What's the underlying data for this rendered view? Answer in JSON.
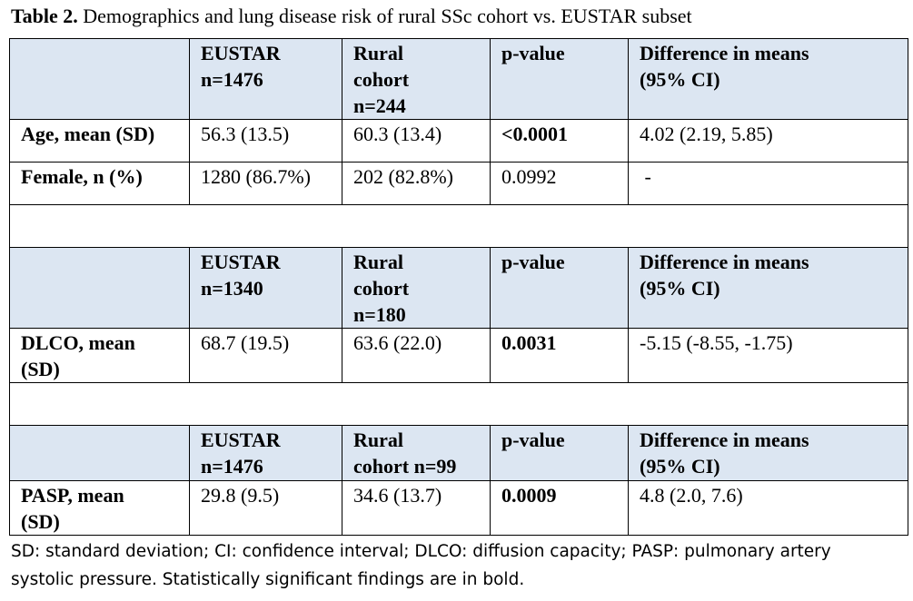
{
  "caption": {
    "label": "Table 2.",
    "text": " Demographics and lung disease risk of rural SSc cohort vs. EUSTAR subset"
  },
  "section1": {
    "header": {
      "col1": "",
      "eustar_line1": "EUSTAR",
      "eustar_line2": "n=1476",
      "rural_line1": "Rural",
      "rural_line2": "cohort",
      "rural_line3": "n=244",
      "pvalue": "p-value",
      "diff_line1": "Difference in means",
      "diff_line2": "(95% CI)"
    },
    "rows": [
      {
        "label": "Age, mean (SD)",
        "eustar": "56.3 (13.5)",
        "rural": "60.3 (13.4)",
        "pvalue": "<0.0001",
        "diff": "4.02 (2.19, 5.85)"
      },
      {
        "label": "Female, n (%)",
        "eustar": "1280 (86.7%)",
        "rural": "202 (82.8%)",
        "pvalue": "0.0992",
        "diff": " -"
      }
    ]
  },
  "section2": {
    "header": {
      "eustar_line1": "EUSTAR",
      "eustar_line2": "n=1340",
      "rural_line1": "Rural",
      "rural_line2": "cohort",
      "rural_line3": "n=180",
      "pvalue": "p-value",
      "diff_line1": "Difference in means",
      "diff_line2": "(95% CI)"
    },
    "row": {
      "label_line1": "DLCO, mean",
      "label_line2": "(SD)",
      "eustar": "68.7 (19.5)",
      "rural": "63.6 (22.0)",
      "pvalue": "0.0031",
      "diff": "-5.15 (-8.55, -1.75)"
    }
  },
  "section3": {
    "header": {
      "eustar_line1": "EUSTAR",
      "eustar_line2": "n=1476",
      "rural_line1": "Rural",
      "rural_line2": "cohort n=99",
      "pvalue": "p-value",
      "diff_line1": "Difference in means",
      "diff_line2": "(95% CI)"
    },
    "row": {
      "label_line1": "PASP, mean",
      "label_line2": "(SD)",
      "eustar": "29.8 (9.5)",
      "rural": "34.6 (13.7)",
      "pvalue": "0.0009",
      "diff": "4.8 (2.0, 7.6)"
    }
  },
  "footnote": {
    "line1": "SD: standard deviation; CI: confidence interval; DLCO: diffusion capacity; PASP: pulmonary artery",
    "line2": "systolic pressure. Statistically significant findings are in bold."
  }
}
